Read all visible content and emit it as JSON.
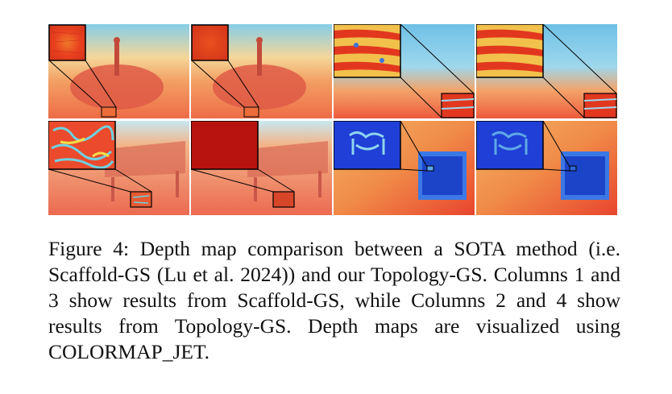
{
  "figure": {
    "caption": "Figure 4: Depth map comparison between a SOTA method (i.e. Scaffold-GS (Lu et al. 2024)) and our Topology-GS. Columns 1 and 3 show results from Scaffold-GS, while Columns 2 and 4 show results from Topology-GS. Depth maps are visualized using COLORMAP_JET.",
    "caption_lines": [
      "Figure 4: Depth map comparison between a SOTA method",
      "(i.e. Scaffold-GS (Lu et al. 2024)) and our Topology-GS.",
      "Columns 1 and 3 show results from Scaffold-GS, while",
      "Columns 2 and 4 show results from Topology-GS. Depth",
      "maps are visualized using COLORMAP_JET."
    ],
    "grid": {
      "rows": 2,
      "columns": 4
    },
    "colors": {
      "jet_red": "#e8433a",
      "jet_orange": "#f6a35a",
      "jet_cyan": "#7ec9e6",
      "jet_blue": "#1f4fd8",
      "zoom_frame": "#000000"
    }
  }
}
